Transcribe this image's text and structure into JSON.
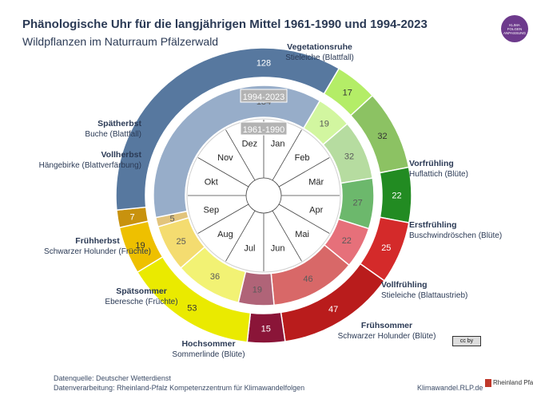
{
  "header": {
    "title": "Phänologische Uhr für die langjährigen Mittel 1961-1990 und 1994-2023",
    "subtitle": "Wildpflanzen im Naturraum Pfälzerwald"
  },
  "chart_data": {
    "type": "pie",
    "subtype": "double-ring donut (phenological clock)",
    "unit": "days",
    "rings": [
      {
        "name": "1994-2023",
        "position": "outer",
        "segments": [
          {
            "phase": "Vegetationsruhe",
            "indicator": "Stieleiche (Blattfall)",
            "days": 128,
            "color": "#57789f"
          },
          {
            "phase": "Vorfrühling",
            "indicator": "Huflattich (Blüte)",
            "days": 17,
            "color": "#b4ed67"
          },
          {
            "phase": "Erstfrühling",
            "indicator": "Buschwindröschen (Blüte)",
            "days": 32,
            "color": "#8cc263"
          },
          {
            "phase": "Vollfrühling",
            "indicator": "Stieleiche (Blattaustrieb)",
            "days": 22,
            "color": "#228b22"
          },
          {
            "phase": "Frühsommer",
            "indicator": "Schwarzer Holunder (Blüte)",
            "days": 25,
            "color": "#d42a2a"
          },
          {
            "phase": "Hochsommer",
            "indicator": "Sommerlinde (Blüte)",
            "days": 47,
            "color": "#b91c1c"
          },
          {
            "phase": "Spätsommer",
            "indicator": "Eberesche (Früchte)",
            "days": 15,
            "color": "#8a1538"
          },
          {
            "phase": "Frühherbst",
            "indicator": "Schwarzer Holunder (Früchte)",
            "days": 53,
            "color": "#eaea00"
          },
          {
            "phase": "Vollherbst",
            "indicator": "Hängebirke (Blattverfärbung)",
            "days": 19,
            "color": "#eec000"
          },
          {
            "phase": "Spätherbst",
            "indicator": "Buche (Blattfall)",
            "days": 7,
            "color": "#c8920e"
          }
        ]
      },
      {
        "name": "1961-1990",
        "position": "inner",
        "segments": [
          {
            "phase": "Vegetationsruhe",
            "days": 134,
            "color": "#97adc9"
          },
          {
            "phase": "Vorfrühling",
            "days": 19,
            "color": "#d2f6a0"
          },
          {
            "phase": "Erstfrühling",
            "days": 32,
            "color": "#b6dca0"
          },
          {
            "phase": "Vollfrühling",
            "days": 27,
            "color": "#6cb86c"
          },
          {
            "phase": "Frühsommer",
            "days": 22,
            "color": "#e6707a"
          },
          {
            "phase": "Hochsommer",
            "days": 46,
            "color": "#d86868"
          },
          {
            "phase": "Spätsommer",
            "days": 19,
            "color": "#b06478"
          },
          {
            "phase": "Frühherbst",
            "days": 36,
            "color": "#f2f274"
          },
          {
            "phase": "Vollherbst",
            "days": 25,
            "color": "#f4dc70"
          },
          {
            "phase": "Spätherbst",
            "days": 5,
            "color": "#e2c47c"
          }
        ]
      }
    ],
    "months": [
      "Jan",
      "Feb",
      "Mär",
      "Apr",
      "Mai",
      "Jun",
      "Jul",
      "Aug",
      "Sep",
      "Okt",
      "Nov",
      "Dez"
    ]
  },
  "footer": {
    "source": "Datenquelle: Deutscher Wetterdienst",
    "processing": "Datenverarbeitung: Rheinland-Pfalz Kompetenzzentrum für Klimawandelfolgen",
    "website": "Klimawandel.RLP.de",
    "state_logo": "Rheinland Pfalz",
    "license_badge": "cc by"
  },
  "logos": {
    "kompetenzzentrum": [
      "KLIMA",
      "FOLGEN",
      "ANPASSUNG"
    ]
  },
  "icons": [
    "kompetenzzentrum-logo-icon",
    "cc-license-icon",
    "rlp-crest-icon"
  ]
}
